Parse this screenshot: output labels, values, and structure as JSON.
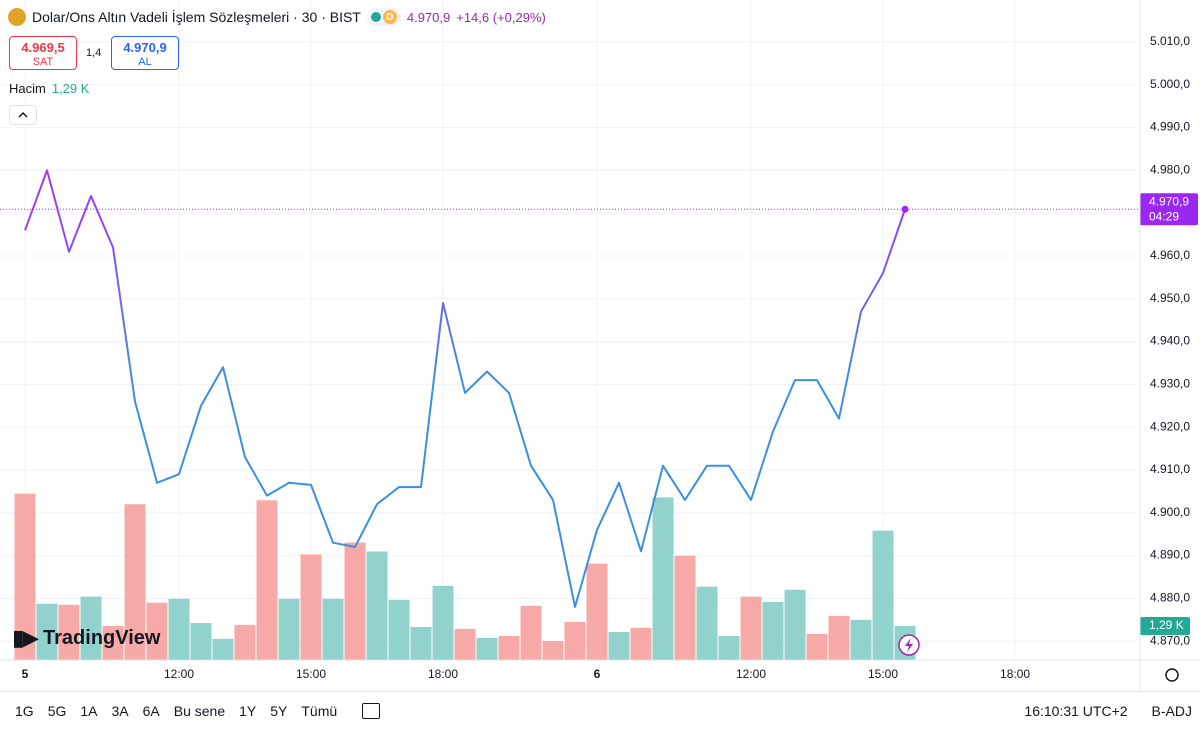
{
  "header": {
    "title": "Dolar/Ons Altın Vadeli İşlem Sözleşmeleri · 30 · BIST",
    "badge": "D",
    "price": "4.970,9",
    "change": "+14,6 (+0,29%)"
  },
  "quote": {
    "sell": "4.969,5",
    "sell_label": "SAT",
    "spread": "1,4",
    "buy": "4.970,9",
    "buy_label": "AL"
  },
  "volume_legend": {
    "label": "Hacim",
    "value": "1,29 K"
  },
  "branding": "TradingView",
  "toolbar": {
    "ranges": [
      "1G",
      "5G",
      "1A",
      "3A",
      "6A",
      "Bu sene",
      "1Y",
      "5Y",
      "Tümü"
    ],
    "clock": "16:10:31 UTC+2",
    "adjustment": "B-ADJ"
  },
  "chart_data": {
    "type": "line",
    "series": [
      {
        "name": "Dolar/Ons Altın",
        "colors": [
          "#9c3df5",
          "#3b8fe0"
        ],
        "values": [
          4966,
          4980,
          4961,
          4974,
          4962,
          4926,
          4907,
          4909,
          4925,
          4934,
          4913,
          4904,
          4907,
          4906.5,
          4893,
          4892,
          4902,
          4906,
          4906,
          4949,
          4928,
          4933,
          4928,
          4911,
          4903,
          4878,
          4896,
          4907,
          4891,
          4911,
          4903,
          4911,
          4911,
          4903,
          4919,
          4931,
          4931,
          4922,
          4947,
          4956,
          4970.9
        ]
      }
    ],
    "volume": {
      "values": [
        6300,
        2130,
        2090,
        2400,
        1290,
        5900,
        2170,
        2320,
        1400,
        800,
        1330,
        6050,
        2320,
        4000,
        2320,
        4450,
        4110,
        2280,
        1250,
        2810,
        1180,
        840,
        910,
        2050,
        720,
        1440,
        3650,
        1060,
        1220,
        6160,
        3950,
        2780,
        910,
        2400,
        2200,
        2660,
        990,
        1670,
        1520,
        4900,
        1290
      ],
      "colors": [
        "#f7a9a7",
        "#92d2cc",
        "#f7a9a7",
        "#92d2cc",
        "#f7a9a7",
        "#f7a9a7",
        "#f7a9a7",
        "#92d2cc",
        "#92d2cc",
        "#92d2cc",
        "#f7a9a7",
        "#f7a9a7",
        "#92d2cc",
        "#f7a9a7",
        "#92d2cc",
        "#f7a9a7",
        "#92d2cc",
        "#92d2cc",
        "#92d2cc",
        "#92d2cc",
        "#f7a9a7",
        "#92d2cc",
        "#f7a9a7",
        "#f7a9a7",
        "#f7a9a7",
        "#f7a9a7",
        "#f7a9a7",
        "#92d2cc",
        "#f7a9a7",
        "#92d2cc",
        "#f7a9a7",
        "#92d2cc",
        "#92d2cc",
        "#f7a9a7",
        "#92d2cc",
        "#92d2cc",
        "#f7a9a7",
        "#f7a9a7",
        "#92d2cc",
        "#92d2cc",
        "#92d2cc"
      ],
      "ylim": [
        0,
        25000
      ],
      "last_label": "1,29 K",
      "last_color": "#22ab94"
    },
    "last_price": {
      "value": 4970.9,
      "label": "4.970,9",
      "countdown": "04:29",
      "color": "#9c27f0"
    },
    "xlim": [
      -1.136,
      50.68
    ],
    "xticks": [
      {
        "value": 0,
        "label": "5"
      },
      {
        "value": 7,
        "label": "12:00"
      },
      {
        "value": 13,
        "label": "15:00"
      },
      {
        "value": 19,
        "label": "18:00"
      },
      {
        "value": 26,
        "label": "6"
      },
      {
        "value": 33,
        "label": "12:00"
      },
      {
        "value": 39,
        "label": "15:00"
      },
      {
        "value": 45,
        "label": "18:00"
      }
    ],
    "ylim": [
      4865.6,
      5019.8
    ],
    "yticks": [
      {
        "value": 4870,
        "label": "4.870,0"
      },
      {
        "value": 4880,
        "label": "4.880,0"
      },
      {
        "value": 4890,
        "label": "4.890,0"
      },
      {
        "value": 4900,
        "label": "4.900,0"
      },
      {
        "value": 4910,
        "label": "4.910,0"
      },
      {
        "value": 4920,
        "label": "4.920,0"
      },
      {
        "value": 4930,
        "label": "4.930,0"
      },
      {
        "value": 4940,
        "label": "4.940,0"
      },
      {
        "value": 4950,
        "label": "4.950,0"
      },
      {
        "value": 4960,
        "label": "4.960,0"
      },
      {
        "value": 4970,
        "label": "4.970,0"
      },
      {
        "value": 4980,
        "label": "4.980,0"
      },
      {
        "value": 4990,
        "label": "4.990,0"
      },
      {
        "value": 5000,
        "label": "5.000,0"
      },
      {
        "value": 5010,
        "label": "5.010,0"
      }
    ],
    "grid": true
  }
}
